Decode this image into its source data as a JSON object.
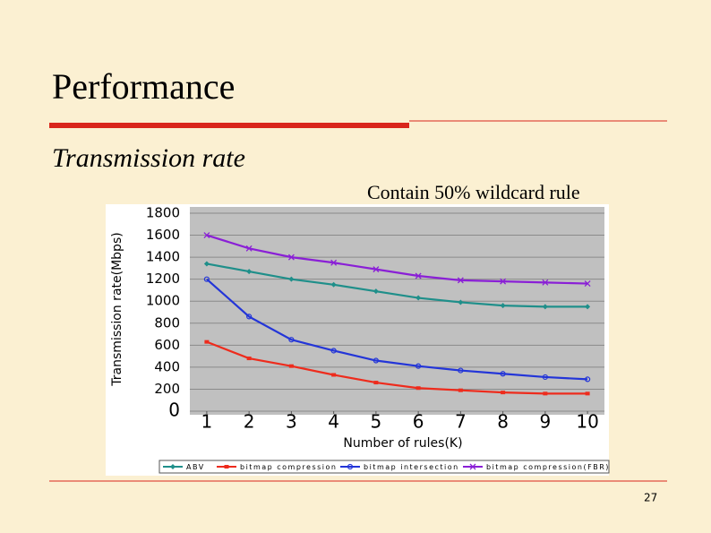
{
  "slide": {
    "title": "Performance",
    "subtitle": "Transmission rate",
    "caption": "Contain 50% wildcard rule",
    "page_number": "27"
  },
  "chart_data": {
    "type": "line",
    "y_label": "Transmission rate(Mbps)",
    "x_label": "Number of rules(K)",
    "x": [
      1,
      2,
      3,
      4,
      5,
      6,
      7,
      8,
      9,
      10
    ],
    "xlim": [
      0.6,
      10.4
    ],
    "xticks": [
      1,
      2,
      3,
      4,
      5,
      6,
      7,
      8,
      9,
      10
    ],
    "ylim": [
      0,
      1800
    ],
    "yticks": [
      0,
      200,
      400,
      600,
      800,
      1000,
      1200,
      1400,
      1600,
      1800
    ],
    "grid": true,
    "series": [
      {
        "name": "ABV",
        "color": "#1f8f8a",
        "marker": "diamond",
        "values": [
          1340,
          1270,
          1200,
          1150,
          1090,
          1030,
          990,
          960,
          950,
          950
        ]
      },
      {
        "name": "bitmap compression",
        "color": "#ee2b1c",
        "marker": "square",
        "values": [
          630,
          480,
          410,
          330,
          260,
          210,
          190,
          170,
          160,
          160
        ]
      },
      {
        "name": "bitmap intersection",
        "color": "#2335d8",
        "marker": "circle",
        "values": [
          1200,
          860,
          650,
          550,
          460,
          410,
          370,
          340,
          310,
          290
        ]
      },
      {
        "name": "bitmap compression(FBR)",
        "color": "#8a1fd6",
        "marker": "cross",
        "values": [
          1600,
          1480,
          1400,
          1350,
          1290,
          1230,
          1190,
          1180,
          1170,
          1160
        ]
      }
    ]
  }
}
